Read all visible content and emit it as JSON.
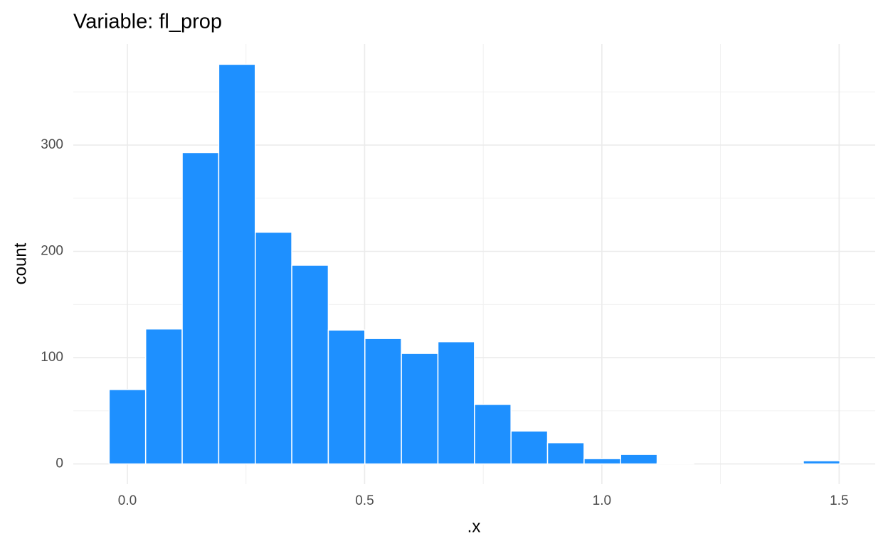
{
  "chart_data": {
    "type": "histogram",
    "title": "Variable: fl_prop",
    "x_label": ".x",
    "y_label": "count",
    "bins": [
      -0.0385,
      0.0385,
      0.1155,
      0.1925,
      0.2695,
      0.3465,
      0.4235,
      0.5005,
      0.5775,
      0.6545,
      0.7315,
      0.8085,
      0.8855,
      0.9625,
      1.0395,
      1.1165,
      1.1935,
      1.2705,
      1.3475,
      1.4245,
      1.5015
    ],
    "values": [
      70,
      127,
      293,
      376,
      218,
      187,
      126,
      118,
      104,
      115,
      56,
      31,
      20,
      5,
      9,
      1,
      0,
      0,
      0,
      3
    ],
    "color": "#1e90ff",
    "xlim": [
      -0.114,
      1.576
    ],
    "ylim": [
      -19,
      395
    ],
    "xticks": [
      {
        "value": 0,
        "label": "0.0"
      },
      0.5,
      {
        "value": 1,
        "label": "1.0"
      },
      1.5
    ],
    "yticks": [
      0,
      100,
      200,
      300
    ],
    "x_minor_grid": [
      0.25,
      0.75,
      1.25
    ],
    "y_minor_grid": [
      50,
      150,
      250,
      350
    ],
    "grid": true
  }
}
